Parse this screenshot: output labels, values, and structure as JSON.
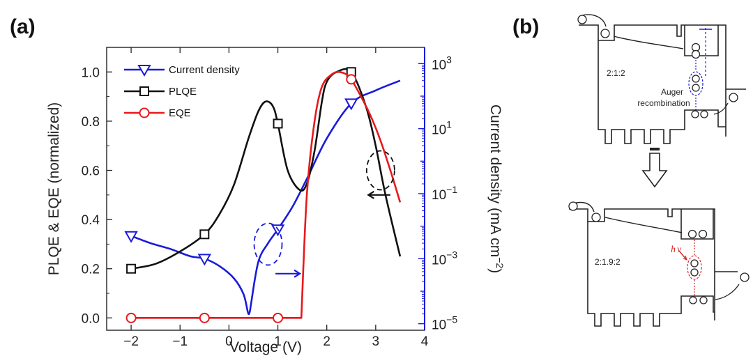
{
  "panels": {
    "a_label": "(a)",
    "b_label": "(b)"
  },
  "colors": {
    "current": "#1a1adb",
    "plqe": "#111111",
    "eqe": "#e8191c",
    "hv": "#d42828",
    "axis": "#222222"
  },
  "chart_data": {
    "type": "line",
    "xlabel": "Voltage (V)",
    "ylabel": "PLQE & EQE (normalized)",
    "y2label_parts": [
      "Current density (mA cm",
      "−2",
      ")"
    ],
    "xlim": [
      -2.5,
      4
    ],
    "ylim": [
      -0.05,
      1.1
    ],
    "y2lim_log10": [
      -5.2,
      3.5
    ],
    "x_ticks": [
      -2,
      -1,
      0,
      1,
      2,
      3,
      4
    ],
    "x_tick_labels": [
      "−2",
      "−1",
      "0",
      "1",
      "2",
      "3",
      "4"
    ],
    "y_ticks": [
      0,
      0.2,
      0.4,
      0.6,
      0.8,
      1.0
    ],
    "y_tick_labels": [
      "0.0",
      "0.2",
      "0.4",
      "0.6",
      "0.8",
      "1.0"
    ],
    "y2_ticks_exp": [
      -5,
      -3,
      -1,
      1,
      3
    ],
    "y2_tick_base": "10",
    "y2_tick_exps": [
      "−5",
      "−3",
      "−1",
      "1",
      "3"
    ],
    "legend_position": "top-left",
    "series": [
      {
        "name": "Current density",
        "axis": "right-log",
        "marker": "triangle-down",
        "x": [
          -2,
          -1.6,
          -1.2,
          -0.8,
          -0.5,
          -0.2,
          0.1,
          0.3,
          0.4,
          0.45,
          0.6,
          0.8,
          1.0,
          1.3,
          1.6,
          2.0,
          2.5,
          3.0,
          3.5
        ],
        "y": [
          0.005,
          0.003,
          0.002,
          0.0012,
          0.001,
          0.0006,
          0.00025,
          8e-05,
          2e-05,
          4e-05,
          0.0008,
          0.003,
          0.008,
          0.04,
          0.3,
          5,
          60,
          150,
          300
        ],
        "marker_x": [
          -2,
          -0.5,
          1,
          2.5
        ],
        "marker_y": [
          0.005,
          0.001,
          0.008,
          60
        ]
      },
      {
        "name": "PLQE",
        "axis": "left",
        "marker": "square",
        "x": [
          -2,
          -1.5,
          -1,
          -0.5,
          -0.2,
          0.1,
          0.4,
          0.6,
          0.75,
          0.9,
          1.0,
          1.2,
          1.45,
          1.6,
          1.75,
          1.9,
          2.0,
          2.2,
          2.5,
          2.8,
          3.0,
          3.2,
          3.5
        ],
        "y": [
          0.2,
          0.22,
          0.27,
          0.34,
          0.42,
          0.54,
          0.73,
          0.84,
          0.88,
          0.86,
          0.79,
          0.6,
          0.52,
          0.55,
          0.68,
          0.88,
          0.96,
          1.0,
          1.0,
          0.86,
          0.7,
          0.5,
          0.25
        ],
        "marker_x": [
          -2,
          -0.5,
          1,
          2.5
        ],
        "marker_y": [
          0.2,
          0.34,
          0.79,
          1.0
        ]
      },
      {
        "name": "EQE",
        "axis": "left",
        "marker": "circle",
        "x": [
          -2,
          -0.5,
          1,
          1.48,
          1.52,
          1.6,
          1.75,
          1.9,
          2.1,
          2.25,
          2.4,
          2.5,
          2.7,
          2.9,
          3.1,
          3.3,
          3.5
        ],
        "y": [
          0,
          0,
          0,
          0,
          0.2,
          0.52,
          0.8,
          0.94,
          0.99,
          1.0,
          0.99,
          0.97,
          0.9,
          0.82,
          0.72,
          0.6,
          0.47
        ],
        "marker_x": [
          -2,
          -0.5,
          1,
          2.5
        ],
        "marker_y": [
          0,
          0,
          0,
          0.97
        ]
      }
    ]
  },
  "diagram": {
    "ratio_top": "2:1:2",
    "auger_line1": "Auger",
    "auger_line2": "recombination",
    "ratio_bottom": "2:1.9:2",
    "hv_h": "h",
    "hv_nu": "ν"
  }
}
